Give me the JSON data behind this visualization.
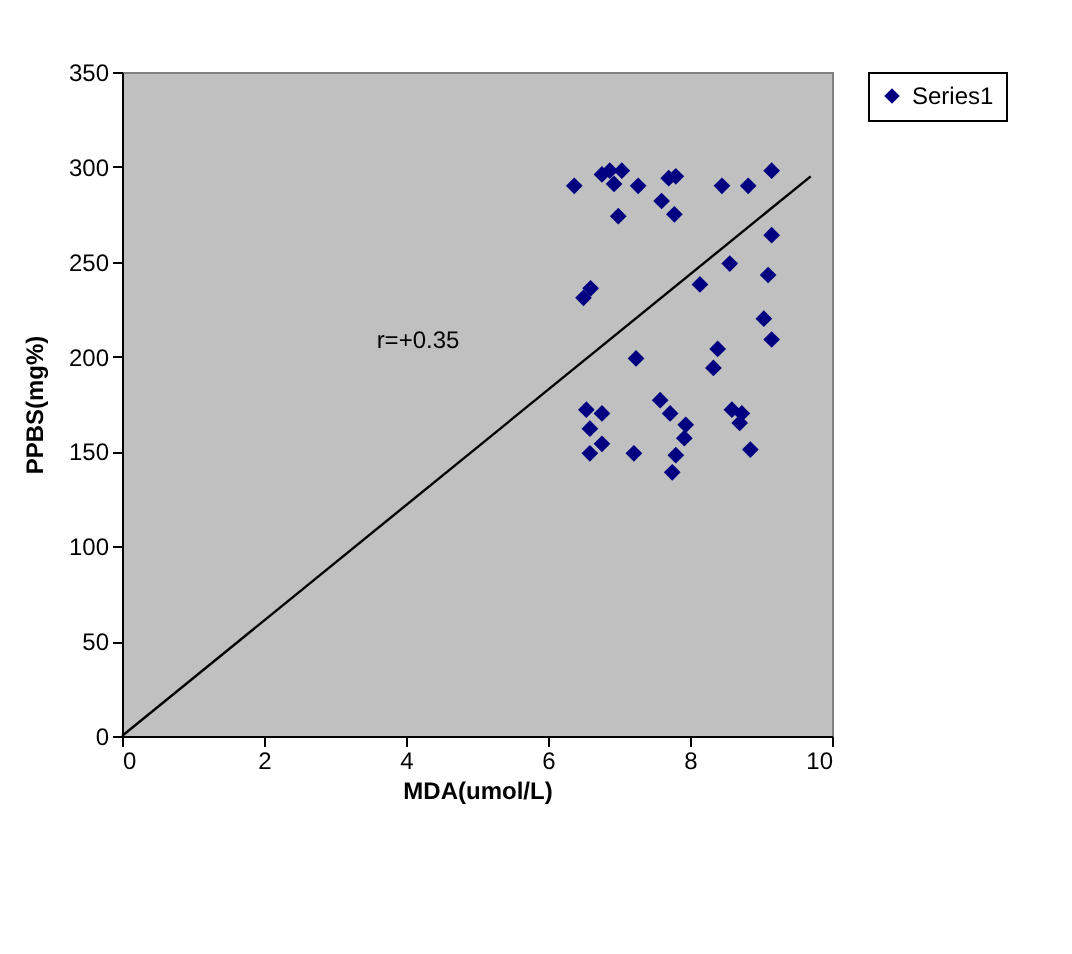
{
  "chart_data": {
    "type": "scatter",
    "xlabel": "MDA(umol/L)",
    "ylabel": "PPBS(mg%)",
    "xlim": [
      0,
      10
    ],
    "xticks": [
      0,
      2,
      4,
      6,
      8,
      10
    ],
    "ylim": [
      0,
      350
    ],
    "yticks": [
      0,
      50,
      100,
      150,
      200,
      250,
      300,
      350
    ],
    "grid": false,
    "legend": "right",
    "marker": "diamond",
    "annotations": [
      "r=+0.35"
    ],
    "series": [
      {
        "name": "Series1",
        "color": "#000080",
        "x": [
          6.37,
          6.76,
          6.87,
          6.93,
          7.04,
          6.99,
          7.27,
          7.6,
          7.7,
          7.8,
          7.78,
          8.45,
          8.82,
          9.15,
          9.15,
          9.1,
          9.04,
          9.15,
          8.56,
          8.14,
          8.39,
          8.33,
          7.24,
          6.5,
          6.6,
          6.54,
          6.76,
          6.59,
          6.76,
          6.59,
          7.21,
          7.58,
          7.72,
          7.94,
          7.92,
          7.8,
          7.75,
          8.59,
          8.73,
          8.7,
          8.85
        ],
        "values": [
          290,
          296,
          298,
          291,
          298,
          274,
          290,
          282,
          294,
          295,
          275,
          290,
          290,
          298,
          264,
          243,
          220,
          209,
          249,
          238,
          204,
          194,
          199,
          231,
          236,
          172,
          170,
          162,
          154,
          149,
          149,
          177,
          170,
          164,
          157,
          148,
          139,
          172,
          170,
          165,
          151
        ]
      },
      {
        "type": "line",
        "color": "#000000",
        "marker": "none",
        "line_style": "solid",
        "x": [
          0,
          9.7
        ],
        "values": [
          0,
          295
        ]
      }
    ]
  }
}
